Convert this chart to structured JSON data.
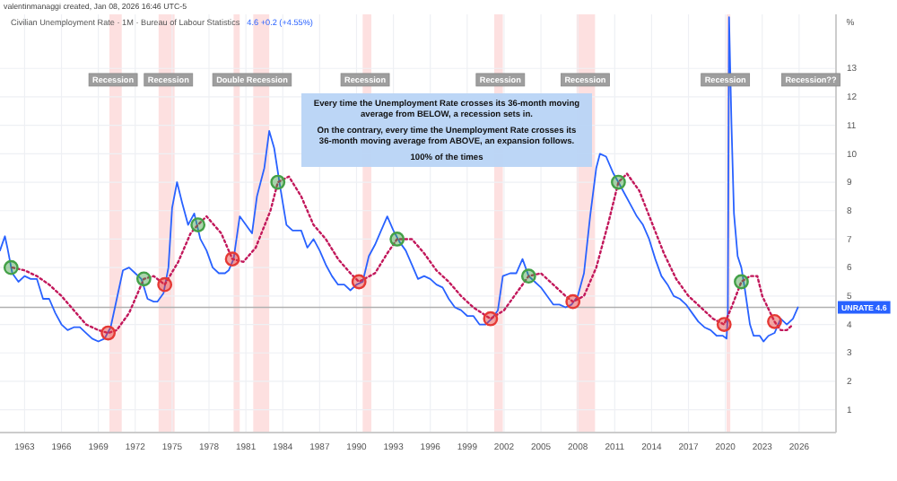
{
  "chart_data": {
    "type": "line",
    "title": "Civilian Unemployment Rate · 1M · Bureau of Labour Statistics",
    "subtitle": "4.6  +0.2 (+4.55%)",
    "ylabel": "%",
    "xlim": [
      1961,
      2029
    ],
    "ylim": [
      0.2,
      14.9
    ],
    "xticks": [
      1963,
      1966,
      1969,
      1972,
      1975,
      1978,
      1981,
      1984,
      1987,
      1990,
      1993,
      1996,
      1999,
      2002,
      2005,
      2008,
      2011,
      2014,
      2017,
      2020,
      2023,
      2026
    ],
    "yticks": [
      1,
      2,
      3,
      4,
      5,
      6,
      7,
      8,
      9,
      10,
      11,
      12,
      13
    ],
    "grid": true,
    "series": [
      {
        "color": "#2962ff",
        "line_style": "solid",
        "x": [
          1961.0,
          1961.4,
          1961.6,
          1962.0,
          1962.5,
          1963.0,
          1963.5,
          1964.0,
          1964.5,
          1965.0,
          1965.5,
          1966.0,
          1966.5,
          1967.0,
          1967.5,
          1968.0,
          1968.5,
          1969.0,
          1969.5,
          1970.0,
          1970.5,
          1971.0,
          1971.5,
          1972.0,
          1972.5,
          1973.0,
          1973.5,
          1973.8,
          1974.3,
          1974.7,
          1975.0,
          1975.4,
          1975.8,
          1976.3,
          1976.8,
          1977.3,
          1977.8,
          1978.3,
          1978.8,
          1979.3,
          1979.6,
          1980.0,
          1980.5,
          1981.0,
          1981.5,
          1981.9,
          1982.5,
          1982.9,
          1983.3,
          1983.8,
          1984.3,
          1984.8,
          1985.5,
          1986.0,
          1986.5,
          1987.0,
          1987.5,
          1988.0,
          1988.5,
          1989.0,
          1989.5,
          1990.0,
          1990.5,
          1991.0,
          1991.5,
          1992.0,
          1992.5,
          1993.0,
          1993.5,
          1994.0,
          1994.5,
          1995.0,
          1995.5,
          1996.0,
          1996.5,
          1997.0,
          1997.5,
          1998.0,
          1998.5,
          1999.0,
          1999.5,
          2000.0,
          2000.5,
          2001.0,
          2001.5,
          2001.9,
          2002.5,
          2003.0,
          2003.5,
          2004.0,
          2004.5,
          2005.0,
          2005.5,
          2006.0,
          2006.5,
          2007.0,
          2007.5,
          2008.0,
          2008.5,
          2009.0,
          2009.5,
          2009.8,
          2010.3,
          2010.9,
          2011.3,
          2011.8,
          2012.3,
          2012.8,
          2013.3,
          2013.8,
          2014.3,
          2014.8,
          2015.3,
          2015.8,
          2016.3,
          2016.8,
          2017.3,
          2017.8,
          2018.3,
          2018.8,
          2019.3,
          2019.8,
          2020.1,
          2020.2,
          2020.3,
          2020.5,
          2020.7,
          2021.0,
          2021.3,
          2021.6,
          2022.0,
          2022.3,
          2022.8,
          2023.1,
          2023.5,
          2024.0,
          2024.5,
          2025.0,
          2025.5,
          2025.9
        ],
        "values": [
          6.6,
          7.1,
          6.7,
          5.8,
          5.5,
          5.7,
          5.6,
          5.6,
          4.9,
          4.9,
          4.4,
          4.0,
          3.8,
          3.9,
          3.9,
          3.7,
          3.5,
          3.4,
          3.5,
          3.9,
          4.9,
          5.9,
          6.0,
          5.8,
          5.6,
          4.9,
          4.8,
          4.8,
          5.1,
          6.0,
          8.1,
          9.0,
          8.3,
          7.5,
          7.9,
          7.0,
          6.6,
          6.0,
          5.8,
          5.8,
          5.9,
          6.3,
          7.8,
          7.5,
          7.2,
          8.5,
          9.5,
          10.8,
          10.2,
          8.8,
          7.5,
          7.3,
          7.3,
          6.7,
          7.0,
          6.6,
          6.1,
          5.7,
          5.4,
          5.4,
          5.2,
          5.4,
          5.5,
          6.4,
          6.8,
          7.3,
          7.8,
          7.3,
          6.9,
          6.6,
          6.1,
          5.6,
          5.7,
          5.6,
          5.4,
          5.3,
          4.9,
          4.6,
          4.5,
          4.3,
          4.3,
          4.0,
          4.0,
          4.2,
          4.5,
          5.7,
          5.8,
          5.8,
          6.3,
          5.7,
          5.5,
          5.3,
          5.0,
          4.7,
          4.7,
          4.6,
          4.7,
          5.0,
          5.8,
          7.8,
          9.5,
          10.0,
          9.9,
          9.3,
          9.0,
          8.6,
          8.2,
          7.8,
          7.5,
          7.0,
          6.3,
          5.7,
          5.4,
          5.0,
          4.9,
          4.7,
          4.4,
          4.1,
          3.9,
          3.8,
          3.6,
          3.6,
          3.5,
          4.4,
          14.8,
          11.0,
          7.9,
          6.4,
          6.0,
          5.2,
          4.0,
          3.6,
          3.6,
          3.4,
          3.6,
          3.7,
          4.2,
          4.0,
          4.2,
          4.6
        ]
      },
      {
        "type": "line",
        "color": "#c2185b",
        "line_style": "dotted",
        "x": [
          1962.0,
          1963.0,
          1964.0,
          1965.0,
          1966.0,
          1967.0,
          1968.0,
          1969.0,
          1969.8,
          1970.5,
          1971.5,
          1972.7,
          1973.5,
          1974.4,
          1975.5,
          1976.5,
          1977.1,
          1977.8,
          1979.0,
          1979.9,
          1980.8,
          1981.8,
          1983.0,
          1983.6,
          1984.5,
          1985.5,
          1986.5,
          1987.5,
          1988.5,
          1989.5,
          1990.2,
          1991.5,
          1992.5,
          1993.3,
          1994.5,
          1995.5,
          1996.5,
          1997.5,
          1998.5,
          1999.5,
          2000.9,
          2002.0,
          2003.0,
          2004.0,
          2005.0,
          2006.0,
          2007.0,
          2007.6,
          2008.5,
          2009.5,
          2010.5,
          2011.3,
          2012.0,
          2013.0,
          2014.0,
          2015.0,
          2016.0,
          2017.0,
          2018.0,
          2019.0,
          2019.9,
          2020.5,
          2021.3,
          2022.0,
          2022.6,
          2023.0,
          2024.0,
          2024.5,
          2025.0,
          2025.5
        ],
        "values": [
          6.0,
          5.9,
          5.7,
          5.4,
          5.0,
          4.5,
          4.0,
          3.8,
          3.7,
          3.8,
          4.4,
          5.6,
          5.7,
          5.4,
          6.2,
          7.2,
          7.5,
          7.8,
          7.2,
          6.3,
          6.2,
          6.7,
          8.0,
          9.0,
          9.2,
          8.5,
          7.5,
          7.0,
          6.3,
          5.8,
          5.5,
          5.8,
          6.5,
          7.0,
          7.0,
          6.5,
          5.9,
          5.5,
          5.0,
          4.6,
          4.2,
          4.5,
          5.1,
          5.7,
          5.8,
          5.4,
          5.0,
          4.8,
          5.0,
          6.0,
          7.6,
          9.0,
          9.3,
          8.7,
          7.6,
          6.5,
          5.6,
          5.0,
          4.6,
          4.2,
          4.0,
          4.6,
          5.5,
          5.7,
          5.7,
          5.0,
          4.1,
          3.8,
          3.8,
          4.0
        ]
      },
      {
        "type": "scatter",
        "marker": "circle",
        "color": "#e53935",
        "x": [
          1969.8,
          1974.4,
          1979.9,
          1990.2,
          2000.9,
          2007.6,
          2019.9,
          2024.0
        ],
        "values": [
          3.7,
          5.4,
          6.3,
          5.5,
          4.2,
          4.8,
          4.0,
          4.1
        ]
      },
      {
        "type": "scatter",
        "marker": "circle",
        "color": "#43a047",
        "x": [
          1961.9,
          1972.7,
          1977.1,
          1983.6,
          1993.3,
          2004.0,
          2011.3,
          2021.3
        ],
        "values": [
          6.0,
          5.6,
          7.5,
          9.0,
          7.0,
          5.7,
          9.0,
          5.5
        ]
      }
    ],
    "bands": [
      {
        "axis": "x",
        "from": 1969.9,
        "to": 1970.9,
        "color": "#fde0e0"
      },
      {
        "axis": "x",
        "from": 1973.9,
        "to": 1975.2,
        "color": "#fde0e0"
      },
      {
        "axis": "x",
        "from": 1980.0,
        "to": 1980.5,
        "color": "#fde0e0"
      },
      {
        "axis": "x",
        "from": 1981.6,
        "to": 1982.9,
        "color": "#fde0e0"
      },
      {
        "axis": "x",
        "from": 1990.5,
        "to": 1991.2,
        "color": "#fde0e0"
      },
      {
        "axis": "x",
        "from": 2001.2,
        "to": 2001.9,
        "color": "#fde0e0"
      },
      {
        "axis": "x",
        "from": 2007.9,
        "to": 2009.4,
        "color": "#fde0e0"
      },
      {
        "axis": "x",
        "from": 2020.1,
        "to": 2020.4,
        "color": "#fde0e0"
      }
    ],
    "ref_lines": [
      {
        "axis": "y",
        "value": 4.6,
        "label": "UNRATE  4.6",
        "color": "#b0b0b0"
      }
    ],
    "annotations": [
      "valentinmanaggi created, Jan 08, 2026 16:46 UTC-5",
      "Every time the Unemployment Rate crosses its 36-month moving average from BELOW, a recession sets in.",
      "On the contrary, every time the Unemployment Rate crosses its 36-month moving average from ABOVE, an expansion follows.",
      "100% of the times",
      {
        "text": "Recession",
        "x": 1970.2,
        "y": 12.6
      },
      {
        "text": "Recession",
        "x": 1974.7,
        "y": 12.6
      },
      {
        "text": "Double Recession",
        "x": 1981.5,
        "y": 12.6
      },
      {
        "text": "Recession",
        "x": 1990.7,
        "y": 12.6
      },
      {
        "text": "Recession",
        "x": 2001.7,
        "y": 12.6
      },
      {
        "text": "Recession",
        "x": 2008.6,
        "y": 12.6
      },
      {
        "text": "Recession",
        "x": 2020.0,
        "y": 12.6
      },
      "Recession??"
    ]
  }
}
